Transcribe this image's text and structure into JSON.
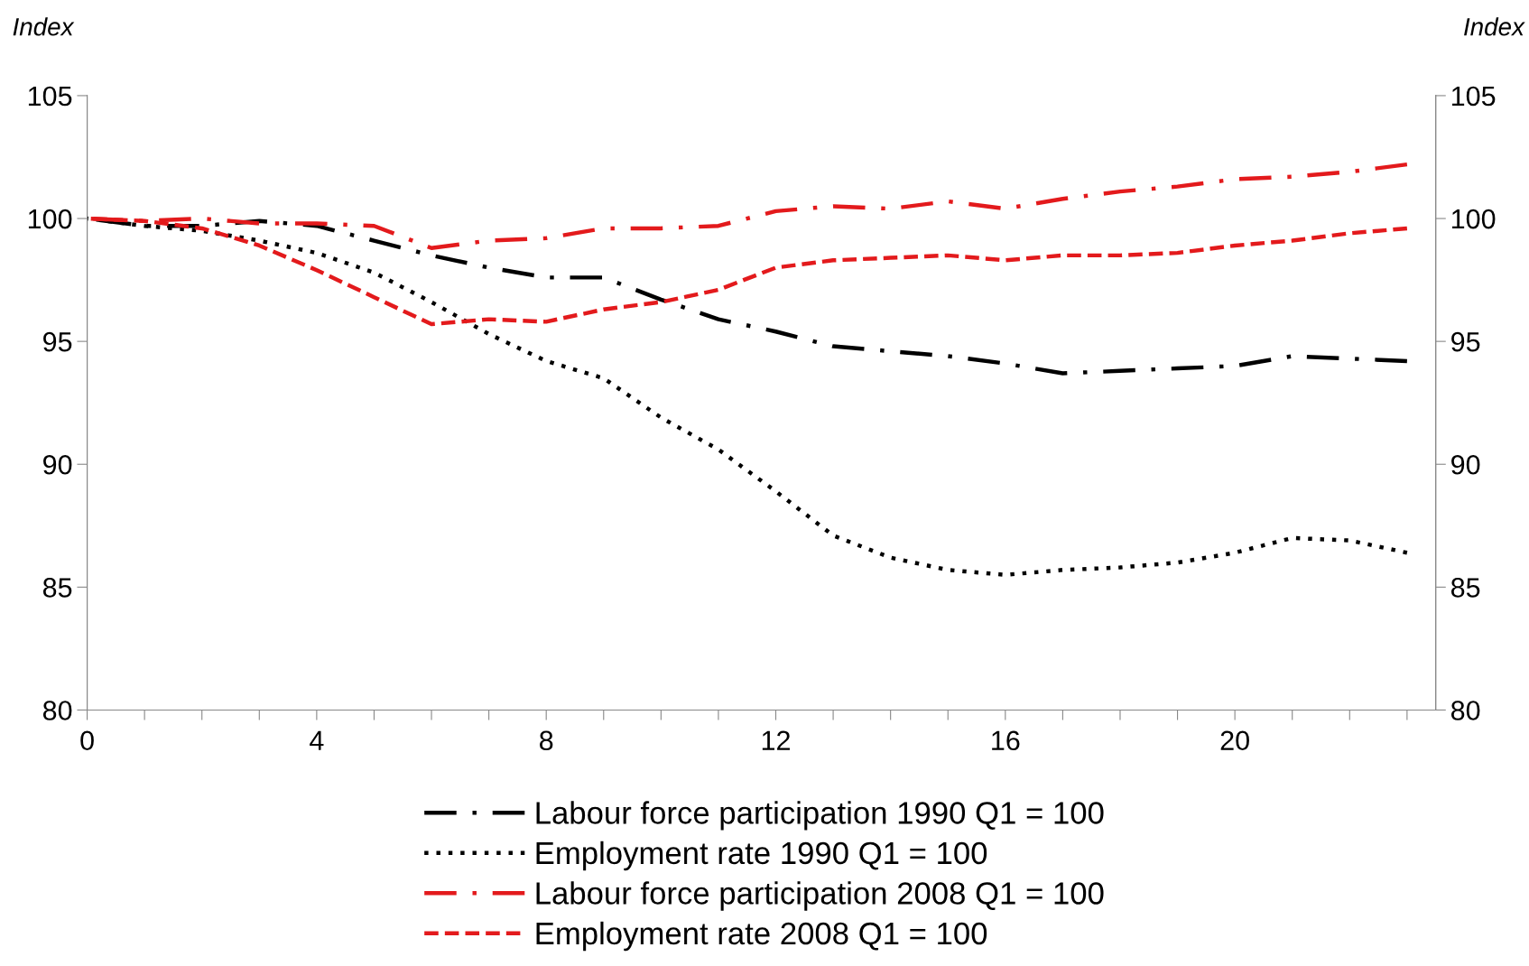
{
  "chart_data": {
    "type": "line",
    "ylabel": "Index",
    "y2label": "Index",
    "x": [
      0,
      1,
      2,
      3,
      4,
      5,
      6,
      7,
      8,
      9,
      10,
      11,
      12,
      13,
      14,
      15,
      16,
      17,
      18,
      19,
      20,
      21,
      22,
      23
    ],
    "xlim": [
      0,
      23.5
    ],
    "xticks": [
      0,
      {
        "value": 1,
        "label": null
      },
      {
        "value": 2,
        "label": null
      },
      {
        "value": 3,
        "label": null
      },
      4,
      {
        "value": 5,
        "label": null
      },
      {
        "value": 6,
        "label": null
      },
      {
        "value": 7,
        "label": null
      },
      8,
      {
        "value": 9,
        "label": null
      },
      {
        "value": 10,
        "label": null
      },
      {
        "value": 11,
        "label": null
      },
      12,
      {
        "value": 13,
        "label": null
      },
      {
        "value": 14,
        "label": null
      },
      {
        "value": 15,
        "label": null
      },
      16,
      {
        "value": 17,
        "label": null
      },
      {
        "value": 18,
        "label": null
      },
      {
        "value": 19,
        "label": null
      },
      20,
      {
        "value": 21,
        "label": null
      },
      {
        "value": 22,
        "label": null
      },
      {
        "value": 23,
        "label": null
      }
    ],
    "ylim": [
      80,
      105
    ],
    "yticks": [
      80,
      85,
      90,
      95,
      100,
      105
    ],
    "y2lim": [
      80,
      105
    ],
    "y2ticks": [
      80,
      85,
      90,
      95,
      100,
      105
    ],
    "grid": false,
    "legend": "bottom",
    "marker": "none",
    "series": [
      {
        "name": "Labour force participation 1990 Q1 = 100",
        "color": "#000000",
        "line_style": "dashdot",
        "values": [
          100,
          99.7,
          99.7,
          99.9,
          99.7,
          99.1,
          98.5,
          98.0,
          97.6,
          97.6,
          96.7,
          95.9,
          95.4,
          94.8,
          94.6,
          94.4,
          94.1,
          93.7,
          93.8,
          93.9,
          94.0,
          94.4,
          94.3,
          94.2
        ]
      },
      {
        "name": "Employment rate 1990 Q1 = 100",
        "color": "#000000",
        "line_style": "dotted",
        "values": [
          100,
          99.7,
          99.5,
          99.1,
          98.6,
          97.8,
          96.6,
          95.3,
          94.2,
          93.5,
          91.9,
          90.6,
          88.9,
          87.1,
          86.2,
          85.7,
          85.5,
          85.7,
          85.8,
          86.0,
          86.4,
          87.0,
          86.9,
          86.4
        ]
      },
      {
        "name": "Labour force participation 2008 Q1 = 100",
        "color": "#e31a1c",
        "line_style": "dashdot",
        "values": [
          100,
          99.9,
          100.0,
          99.8,
          99.8,
          99.7,
          98.8,
          99.1,
          99.2,
          99.6,
          99.6,
          99.7,
          100.3,
          100.5,
          100.4,
          100.7,
          100.4,
          100.8,
          101.1,
          101.3,
          101.6,
          101.7,
          101.9,
          102.2
        ]
      },
      {
        "name": "Employment rate 2008 Q1 = 100",
        "color": "#e31a1c",
        "line_style": "dashed",
        "values": [
          100,
          99.9,
          99.6,
          98.9,
          97.9,
          96.8,
          95.7,
          95.9,
          95.8,
          96.3,
          96.6,
          97.1,
          98.0,
          98.3,
          98.4,
          98.5,
          98.3,
          98.5,
          98.5,
          98.6,
          98.9,
          99.1,
          99.4,
          99.6
        ]
      }
    ]
  }
}
